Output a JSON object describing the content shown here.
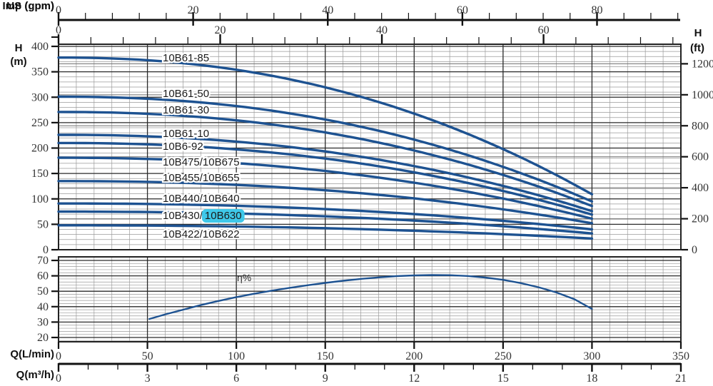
{
  "palette": {
    "curve_blue": "#1d5291",
    "highlight_cyan": "#3fc8e9",
    "grid_light": "#9a9a9a",
    "grid_medium": "#6e6e6e",
    "grid_dark": "#2a2a2a",
    "axis_black": "#111111",
    "tick_text": "#333333",
    "label_text": "#1a1a1a"
  },
  "axes": {
    "us_gpm": {
      "label": "US (gpm)",
      "ticks": [
        0,
        20,
        40,
        60,
        80
      ],
      "minor_step": 4,
      "minor_max": 92
    },
    "imp_gpm": {
      "label": "Imp (gpm)",
      "ticks": [
        0,
        20,
        40,
        60
      ],
      "minor_step": 4,
      "minor_max": 76
    },
    "h_m": {
      "label": "H",
      "unit": "(m)",
      "ticks": [
        0,
        50,
        100,
        150,
        200,
        250,
        300,
        350,
        400
      ]
    },
    "h_ft": {
      "label": "H",
      "unit": "(ft)",
      "ticks": [
        0,
        200,
        400,
        600,
        800,
        1000,
        1200
      ]
    },
    "q_lmin": {
      "label": "Q(L/min)",
      "ticks": [
        0,
        50,
        100,
        150,
        200,
        250,
        300,
        350
      ],
      "minor_step": 10
    },
    "q_m3h": {
      "label": "Q(m³/h)",
      "ticks": [
        0,
        3,
        6,
        9,
        12,
        15,
        18,
        21
      ],
      "minor_step": 1
    },
    "eta_pct": {
      "ticks": [
        20,
        30,
        40,
        50,
        60,
        70
      ]
    }
  },
  "chart_data": {
    "head_chart": {
      "type": "line",
      "x_unit_primary": "L/min",
      "xlim_lmin": [
        0,
        350
      ],
      "ylabel_left": "H (m)",
      "ylim_m": [
        0,
        404
      ],
      "ylabel_right": "H (ft)",
      "grid": "on",
      "q_curve_end_lmin": 300,
      "droop_exponent": 2.2,
      "series": [
        {
          "label": "10B61-85",
          "head_start_m": 378,
          "head_end_m": 109
        },
        {
          "label": "10B61-50",
          "head_start_m": 301,
          "head_end_m": 95
        },
        {
          "label": "10B61-30",
          "head_start_m": 271,
          "head_end_m": 86
        },
        {
          "label": "10B61-10",
          "head_start_m": 226,
          "head_end_m": 76
        },
        {
          "label": "10B6-92",
          "head_start_m": 210,
          "head_end_m": 69
        },
        {
          "label": "10B475/10B675",
          "head_start_m": 181,
          "head_end_m": 61
        },
        {
          "label": "10B455/10B655",
          "head_start_m": 135,
          "head_end_m": 52
        },
        {
          "label": "10B440/10B640",
          "head_start_m": 91,
          "head_end_m": 40
        },
        {
          "label": "10B430/10B630",
          "head_start_m": 75,
          "head_end_m": 32,
          "highlight_part": "10B630"
        },
        {
          "label": "10B422/10B622",
          "head_start_m": 48,
          "head_end_m": 22
        }
      ]
    },
    "efficiency_chart": {
      "type": "line",
      "ylabel": "η%",
      "ylim": [
        17,
        72
      ],
      "grid": "on",
      "points_q_lmin_vs_eta_pct": [
        [
          51,
          32
        ],
        [
          60,
          35
        ],
        [
          70,
          38
        ],
        [
          80,
          41
        ],
        [
          90,
          43.7
        ],
        [
          100,
          46.2
        ],
        [
          110,
          48.4
        ],
        [
          120,
          50.4
        ],
        [
          130,
          52.2
        ],
        [
          140,
          53.9
        ],
        [
          150,
          55.4
        ],
        [
          160,
          56.8
        ],
        [
          170,
          58
        ],
        [
          180,
          59
        ],
        [
          190,
          59.8
        ],
        [
          200,
          60.3
        ],
        [
          210,
          60.5
        ],
        [
          220,
          60.4
        ],
        [
          230,
          59.9
        ],
        [
          240,
          58.9
        ],
        [
          250,
          57.4
        ],
        [
          260,
          55.3
        ],
        [
          270,
          52.6
        ],
        [
          280,
          49.2
        ],
        [
          290,
          44.9
        ],
        [
          300,
          38.5
        ]
      ]
    }
  }
}
